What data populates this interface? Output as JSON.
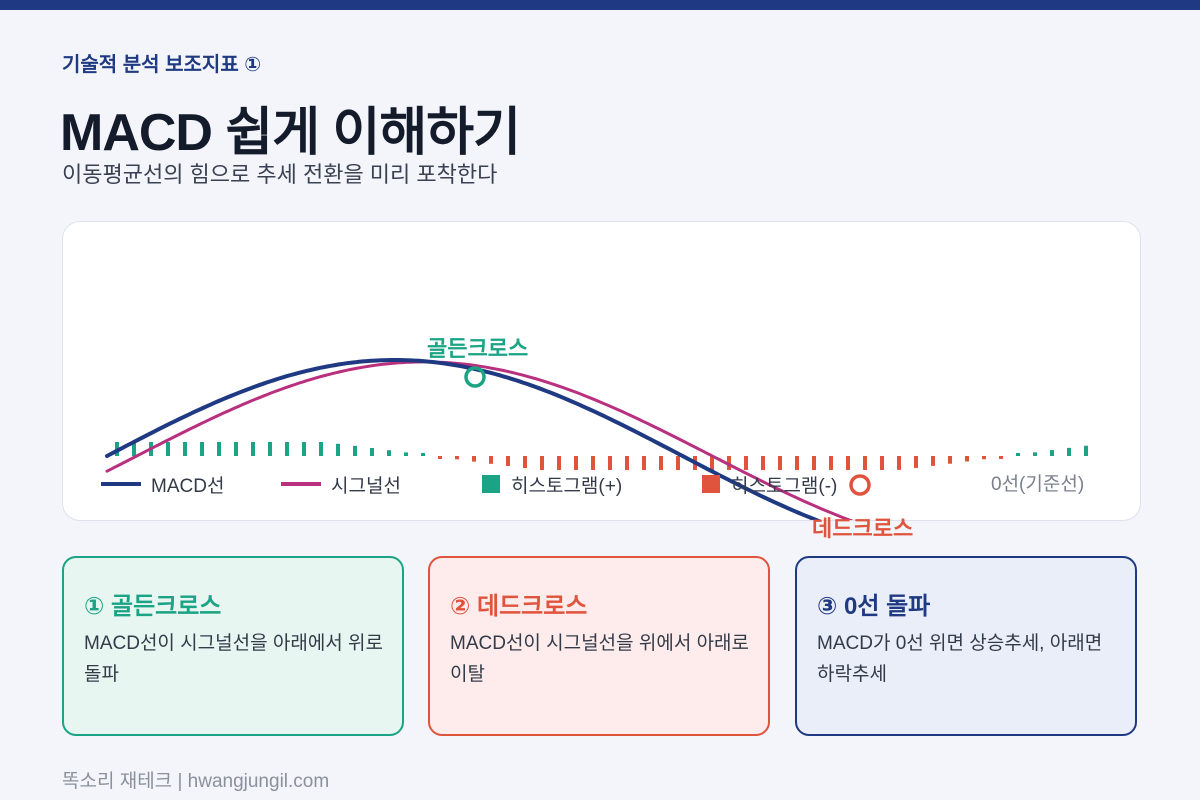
{
  "header": {
    "kicker": "기술적 분석 보조지표 ①",
    "title": "MACD 쉽게 이해하기",
    "subtitle": "이동평균선의 힘으로 추세 전환을 미리 포착한다"
  },
  "chart_data": {
    "type": "line",
    "series": [
      {
        "name": "MACD선",
        "color": "#1f3a82"
      },
      {
        "name": "시그널선",
        "color": "#b8307e"
      }
    ],
    "histogram": {
      "positive_label": "히스토그램(+)",
      "negative_label": "히스토그램(-)",
      "positive_color": "#1aa384",
      "negative_color": "#e0533d"
    },
    "zero_line_label": "0선(기준선)",
    "annotations": [
      {
        "label": "골든크로스",
        "color": "#1aa384"
      },
      {
        "label": "데드크로스",
        "color": "#e0533d"
      }
    ],
    "grid": false,
    "legend_position": "bottom"
  },
  "cards": [
    {
      "title": "① 골든크로스",
      "body": "MACD선이 시그널선을 아래에서 위로 돌파"
    },
    {
      "title": "② 데드크로스",
      "body": "MACD선이 시그널선을 위에서 아래로 이탈"
    },
    {
      "title": "③ 0선 돌파",
      "body": "MACD가 0선 위면 상승추세, 아래면 하락추세"
    }
  ],
  "footer": {
    "text": "똑소리 재테크 | hwangjungil.com"
  }
}
